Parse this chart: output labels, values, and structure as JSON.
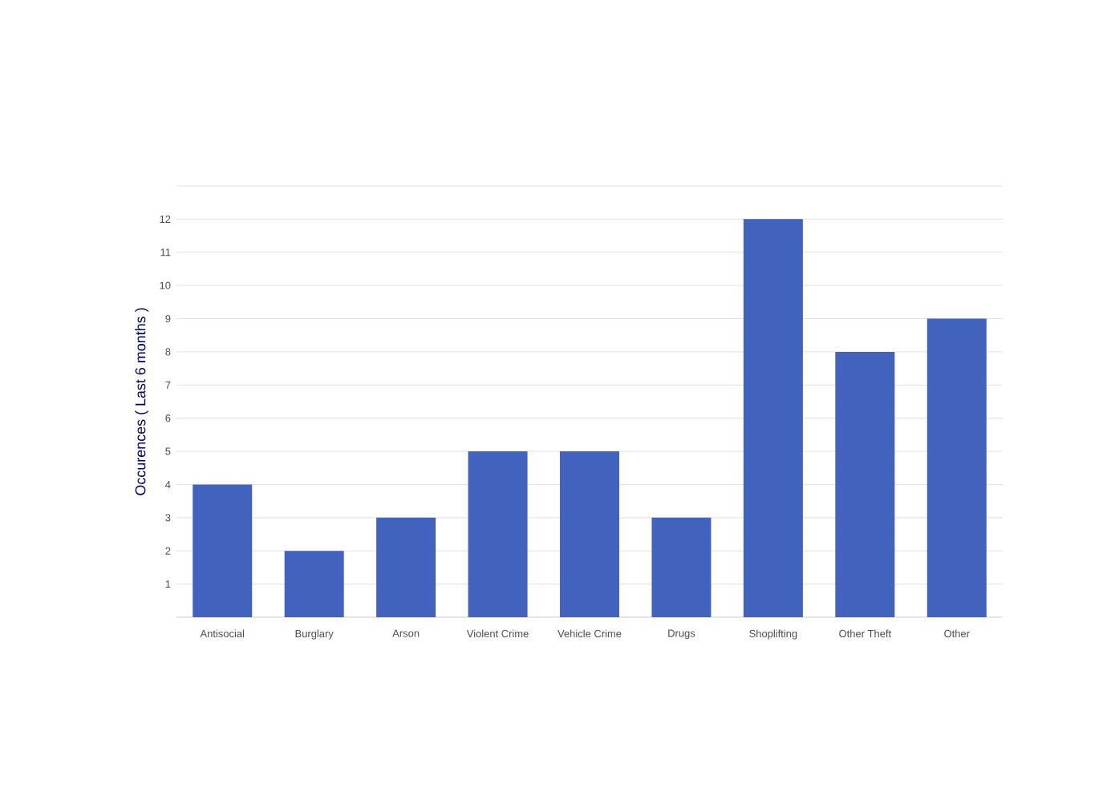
{
  "chart_data": {
    "type": "bar",
    "ylabel": "Occurences ( Last 6 months )",
    "categories": [
      "Antisocial",
      "Burglary",
      "Arson",
      "Violent Crime",
      "Vehicle Crime",
      "Drugs",
      "Shoplifting",
      "Other Theft",
      "Other"
    ],
    "values": [
      4,
      2,
      3,
      5,
      5,
      3,
      12,
      8,
      9
    ],
    "color": "#4162bd",
    "ylim": [
      0,
      13
    ],
    "yticks": [
      1,
      2,
      3,
      4,
      5,
      6,
      7,
      8,
      9,
      10,
      11,
      12,
      {
        "value": 13,
        "label": null
      }
    ],
    "grid": "y"
  }
}
